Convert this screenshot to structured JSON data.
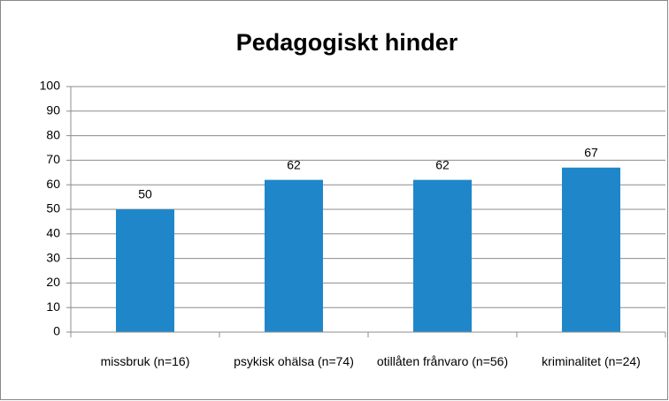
{
  "chart_data": {
    "type": "bar",
    "title": "Pedagogiskt hinder",
    "categories": [
      "missbruk (n=16)",
      "psykisk ohälsa (n=74)",
      "otillåten frånvaro (n=56)",
      "kriminalitet (n=24)"
    ],
    "values": [
      50,
      62,
      62,
      67
    ],
    "color": "#1f87c9",
    "ylim": [
      0,
      100
    ],
    "yticks": [
      0,
      10,
      20,
      30,
      40,
      50,
      60,
      70,
      80,
      90,
      100
    ],
    "grid": true
  }
}
